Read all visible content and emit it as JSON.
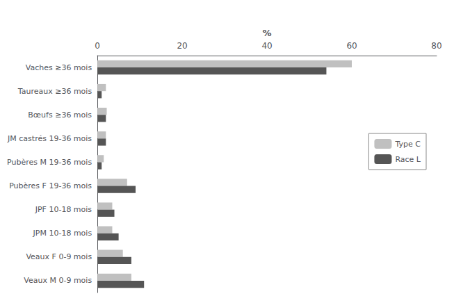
{
  "chart_data": {
    "type": "bar",
    "orientation": "horizontal",
    "xlabel": "%",
    "categories": [
      "Vaches ≥36 mois",
      "Taureaux ≥36 mois",
      "Bœufs ≥36 mois",
      "JM castrés 19-36 mois",
      "Pubères M 19-36 mois",
      "Pubères F 19-36 mois",
      "JPF 10-18 mois",
      "JPM 10-18 mois",
      "Veaux F 0-9 mois",
      "Veaux M 0-9 mois"
    ],
    "series": [
      {
        "name": "Type C",
        "color": "#c0c0c0",
        "values": [
          60,
          2.0,
          2.2,
          2.0,
          1.5,
          7.0,
          3.5,
          3.5,
          6.0,
          8.0
        ]
      },
      {
        "name": "Race L",
        "color": "#555555",
        "values": [
          54,
          1.0,
          2.0,
          2.0,
          1.0,
          9.0,
          4.0,
          5.0,
          8.0,
          11.0
        ]
      }
    ],
    "xlim": [
      0,
      80
    ],
    "xticks": [
      0,
      20,
      40,
      60,
      80
    ],
    "grid": false,
    "legend": "right"
  }
}
